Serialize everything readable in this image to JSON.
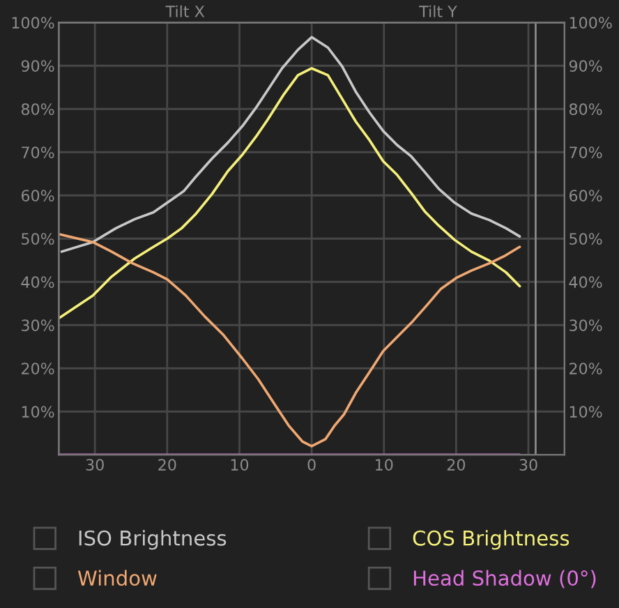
{
  "chart_data": {
    "type": "line",
    "annotations": [
      "Tilt X",
      "Tilt Y"
    ],
    "xlim": [
      -35,
      35
    ],
    "xticks": [
      {
        "value": -30,
        "label": "30"
      },
      {
        "value": -20,
        "label": "20"
      },
      {
        "value": -10,
        "label": "10"
      },
      0,
      10,
      20,
      30
    ],
    "ylim": [
      0,
      100
    ],
    "yticks": [
      {
        "value": 10,
        "label": "10%"
      },
      {
        "value": 20,
        "label": "20%"
      },
      {
        "value": 30,
        "label": "30%"
      },
      {
        "value": 40,
        "label": "40%"
      },
      {
        "value": 50,
        "label": "50%"
      },
      {
        "value": 60,
        "label": "60%"
      },
      {
        "value": 70,
        "label": "70%"
      },
      {
        "value": 80,
        "label": "80%"
      },
      {
        "value": 90,
        "label": "90%"
      },
      {
        "value": 100,
        "label": "100%"
      }
    ],
    "y2lim": [
      0,
      100
    ],
    "y2ticks": [
      {
        "value": 10,
        "label": "10%"
      },
      {
        "value": 20,
        "label": "20%"
      },
      {
        "value": 30,
        "label": "30%"
      },
      {
        "value": 40,
        "label": "40%"
      },
      {
        "value": 50,
        "label": "50%"
      },
      {
        "value": 60,
        "label": "60%"
      },
      {
        "value": 70,
        "label": "70%"
      },
      {
        "value": 80,
        "label": "80%"
      },
      {
        "value": 90,
        "label": "90%"
      },
      {
        "value": 100,
        "label": "100%"
      }
    ],
    "grid": true,
    "legend": "bottom",
    "marker": "none",
    "line_style": "solid",
    "ref_lines": [
      {
        "axis": "x",
        "value": 31,
        "color": "#8a8a8a"
      }
    ],
    "series": [
      {
        "name": "ISO Brightness",
        "color": "#c8c8c8",
        "x": [
          -34.6,
          -30.3,
          -27.1,
          -24.5,
          -21.9,
          -20.0,
          -17.7,
          -16.1,
          -13.8,
          -11.6,
          -9.6,
          -7.7,
          -5.8,
          -4.1,
          -1.9,
          0,
          2.25,
          4.2,
          6.1,
          8.0,
          9.9,
          11.8,
          13.8,
          15.7,
          17.6,
          19.8,
          22.1,
          24.6,
          26.9,
          28.8
        ],
        "values": [
          47.0,
          49.2,
          52.4,
          54.5,
          56.1,
          58.3,
          61.0,
          64.2,
          68.5,
          72.2,
          76.0,
          80.3,
          85.1,
          89.4,
          93.7,
          96.6,
          94.2,
          89.9,
          84.0,
          79.2,
          74.9,
          71.7,
          69.0,
          65.3,
          61.5,
          58.3,
          55.8,
          54.3,
          52.4,
          50.5
        ]
      },
      {
        "name": "COS Brightness",
        "color": "#f5f07a",
        "x": [
          -34.9,
          -30.3,
          -27.7,
          -24.5,
          -21.9,
          -20.0,
          -18.0,
          -16.1,
          -13.8,
          -11.6,
          -9.6,
          -7.7,
          -6.1,
          -3.8,
          -1.9,
          0,
          2.25,
          4.2,
          6.1,
          8.0,
          9.9,
          11.8,
          13.8,
          15.7,
          17.6,
          19.8,
          22.1,
          24.6,
          26.9,
          28.8
        ],
        "values": [
          31.7,
          36.8,
          41.2,
          45.4,
          48.1,
          50.0,
          52.4,
          55.6,
          60.3,
          65.6,
          69.4,
          73.6,
          77.5,
          83.5,
          87.8,
          89.4,
          87.8,
          82.4,
          77.1,
          72.8,
          67.9,
          64.8,
          60.5,
          56.2,
          53.0,
          49.7,
          47.0,
          44.9,
          42.2,
          39.0
        ]
      },
      {
        "name": "Window",
        "color": "#f0a872",
        "x": [
          -34.9,
          -30.3,
          -27.7,
          -24.8,
          -21.9,
          -20.0,
          -17.4,
          -14.8,
          -12.2,
          -9.6,
          -7.4,
          -5.1,
          -3.2,
          -1.3,
          0,
          1.9,
          3.2,
          4.5,
          6.1,
          8.0,
          9.9,
          12.1,
          14.0,
          16.0,
          17.9,
          20.1,
          22.1,
          24.6,
          26.6,
          28.8
        ],
        "values": [
          51.0,
          49.2,
          47.0,
          44.3,
          42.2,
          40.6,
          36.8,
          32.0,
          27.7,
          22.3,
          17.5,
          11.6,
          6.8,
          3.1,
          2.0,
          3.6,
          6.8,
          9.4,
          14.3,
          19.1,
          24.0,
          27.7,
          30.9,
          34.7,
          38.4,
          41.0,
          42.6,
          44.3,
          45.9,
          48.1
        ]
      },
      {
        "name": "Head Shadow (0°)",
        "color": "#e070e0",
        "x": [
          -35,
          28.8
        ],
        "values": [
          0,
          0
        ]
      }
    ]
  }
}
